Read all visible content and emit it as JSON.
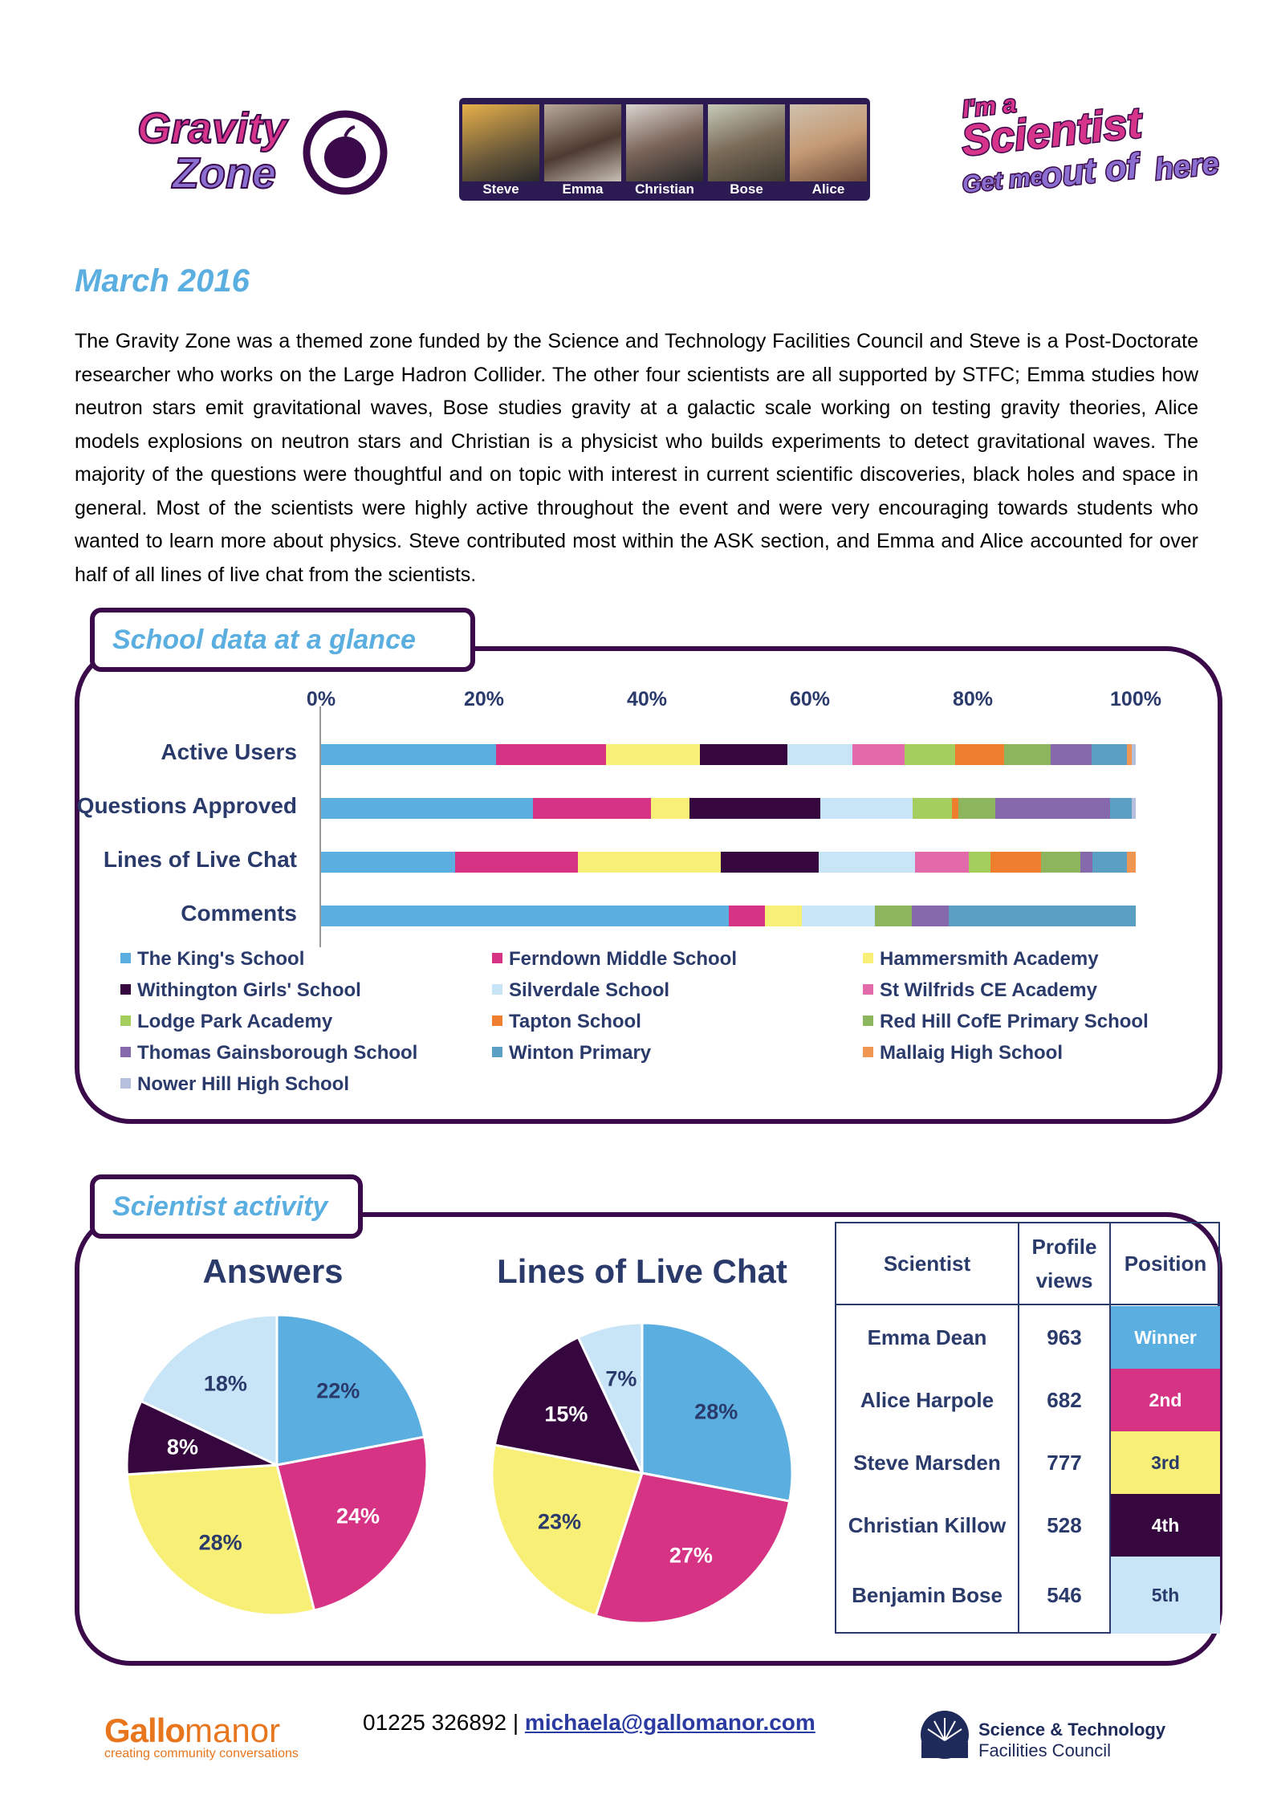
{
  "header": {
    "logo_left_text": [
      "Gravity",
      "Zone"
    ],
    "scientist_strip": [
      "Steve",
      "Emma",
      "Christian",
      "Bose",
      "Alice"
    ],
    "logo_right_text": [
      "I'm a",
      "Scientist",
      "Get me",
      "out of",
      "here"
    ]
  },
  "title": "March 2016",
  "intro": "The Gravity Zone was a themed zone funded by the Science and Technology Facilities Council and Steve is a Post-Doctorate researcher who works on the Large Hadron Collider. The other four scientists are all supported by STFC; Emma studies how neutron stars emit gravitational waves, Bose studies gravity at a galactic scale working on testing gravity theories, Alice models explosions on neutron stars and Christian is a physicist who builds experiments to detect gravitational waves. The majority of the questions were thoughtful and on topic with interest in current scientific discoveries, black holes and space in general. Most of the scientists were highly active throughout the event and were very encouraging towards students who wanted to learn more about physics. Steve contributed most within the ASK section, and Emma and Alice accounted for over half of all lines of live chat from the scientists.",
  "school_section": {
    "tab_label": "School data at a glance"
  },
  "scientist_section": {
    "tab_label": "Scientist activity"
  },
  "colors": {
    "panel_border": "#3a0a4a",
    "title_blue": "#5aaee0",
    "text_navy": "#2a3a6b"
  },
  "chart_data": [
    {
      "type": "bar",
      "stacked": "percent",
      "orientation": "horizontal",
      "categories": [
        "Active Users",
        "Questions Approved",
        "Lines of Live Chat",
        "Comments"
      ],
      "xticks": [
        "0%",
        "20%",
        "40%",
        "60%",
        "80%",
        "100%"
      ],
      "xlim": [
        0,
        100
      ],
      "legend_position": "bottom",
      "series": [
        {
          "name": "The King's School",
          "color": "#5aaee0",
          "values": [
            21.5,
            26,
            16.5,
            50
          ]
        },
        {
          "name": "Ferndown Middle School",
          "color": "#d63384",
          "values": [
            13.5,
            14.5,
            15,
            4.5
          ]
        },
        {
          "name": "Hammersmith Academy",
          "color": "#f8ef76",
          "values": [
            11.5,
            4.7,
            17.6,
            4.5
          ]
        },
        {
          "name": "Withington Girls' School",
          "color": "#36073f",
          "values": [
            10.7,
            16.1,
            12,
            0
          ]
        },
        {
          "name": "Silverdale School",
          "color": "#c8e4f7",
          "values": [
            8,
            11.3,
            11.8,
            9
          ]
        },
        {
          "name": "St Wilfrids CE Academy",
          "color": "#e26aaa",
          "values": [
            6.4,
            0,
            6.6,
            0
          ]
        },
        {
          "name": "Lodge Park Academy",
          "color": "#a4cf5e",
          "values": [
            6.2,
            4.8,
            2.7,
            0
          ]
        },
        {
          "name": "Tapton School",
          "color": "#ef7f2e",
          "values": [
            6,
            0.8,
            6.2,
            0
          ]
        },
        {
          "name": "Red Hill CofE Primary School",
          "color": "#8db55e",
          "values": [
            5.8,
            4.6,
            4.8,
            4.5
          ]
        },
        {
          "name": "Thomas Gainsborough School",
          "color": "#8668ad",
          "values": [
            5,
            14,
            1.5,
            4.5
          ]
        },
        {
          "name": "Winton Primary",
          "color": "#5b9fc4",
          "values": [
            4.3,
            2.7,
            4.2,
            23
          ]
        },
        {
          "name": "Mallaig High School",
          "color": "#ee9652",
          "values": [
            0.6,
            0,
            1.1,
            0
          ]
        },
        {
          "name": "Nower Hill High School",
          "color": "#b6c0dc",
          "values": [
            0.5,
            0.5,
            0,
            0
          ]
        }
      ]
    },
    {
      "type": "pie",
      "title": "Answers",
      "labels": [
        "22%",
        "24%",
        "28%",
        "8%",
        "18%"
      ],
      "values": [
        22,
        24,
        28,
        8,
        18
      ],
      "colors": [
        "#5aaee0",
        "#d63384",
        "#f8ef76",
        "#36073f",
        "#c8e4f7"
      ],
      "label_colors": [
        "#2a3a6b",
        "#ffffff",
        "#2a3a6b",
        "#ffffff",
        "#2a3a6b"
      ]
    },
    {
      "type": "pie",
      "title": "Lines of Live Chat",
      "labels": [
        "28%",
        "27%",
        "23%",
        "15%",
        "7%"
      ],
      "values": [
        28,
        27,
        23,
        15,
        7
      ],
      "colors": [
        "#5aaee0",
        "#d63384",
        "#f8ef76",
        "#36073f",
        "#c8e4f7"
      ],
      "label_colors": [
        "#2a3a6b",
        "#ffffff",
        "#2a3a6b",
        "#ffffff",
        "#2a3a6b"
      ]
    },
    {
      "type": "table",
      "headers": [
        "Scientist",
        "Profile views",
        "Position"
      ],
      "rows": [
        {
          "name": "Emma Dean",
          "views": "963",
          "position": "Winner",
          "bg": "#5aaee0",
          "fg": "#ffffff"
        },
        {
          "name": "Alice Harpole",
          "views": "682",
          "position": "2nd",
          "bg": "#d63384",
          "fg": "#ffffff"
        },
        {
          "name": "Steve Marsden",
          "views": "777",
          "position": "3rd",
          "bg": "#f8ef76",
          "fg": "#2a3a6b"
        },
        {
          "name": "Christian Killow",
          "views": "528",
          "position": "4th",
          "bg": "#36073f",
          "fg": "#ffffff"
        },
        {
          "name": "Benjamin Bose",
          "views": "546",
          "position": "5th",
          "bg": "#c8e4f7",
          "fg": "#2a3a6b"
        }
      ]
    }
  ],
  "footer": {
    "gallo_bold": "Gallo",
    "gallo_rest": "manor",
    "gallo_tagline": "creating community conversations",
    "phone": "01225 326892",
    "separator": "|",
    "email": "michaela@gallomanor.com",
    "stfc_line1": "Science & Technology",
    "stfc_line2": "Facilities Council"
  }
}
